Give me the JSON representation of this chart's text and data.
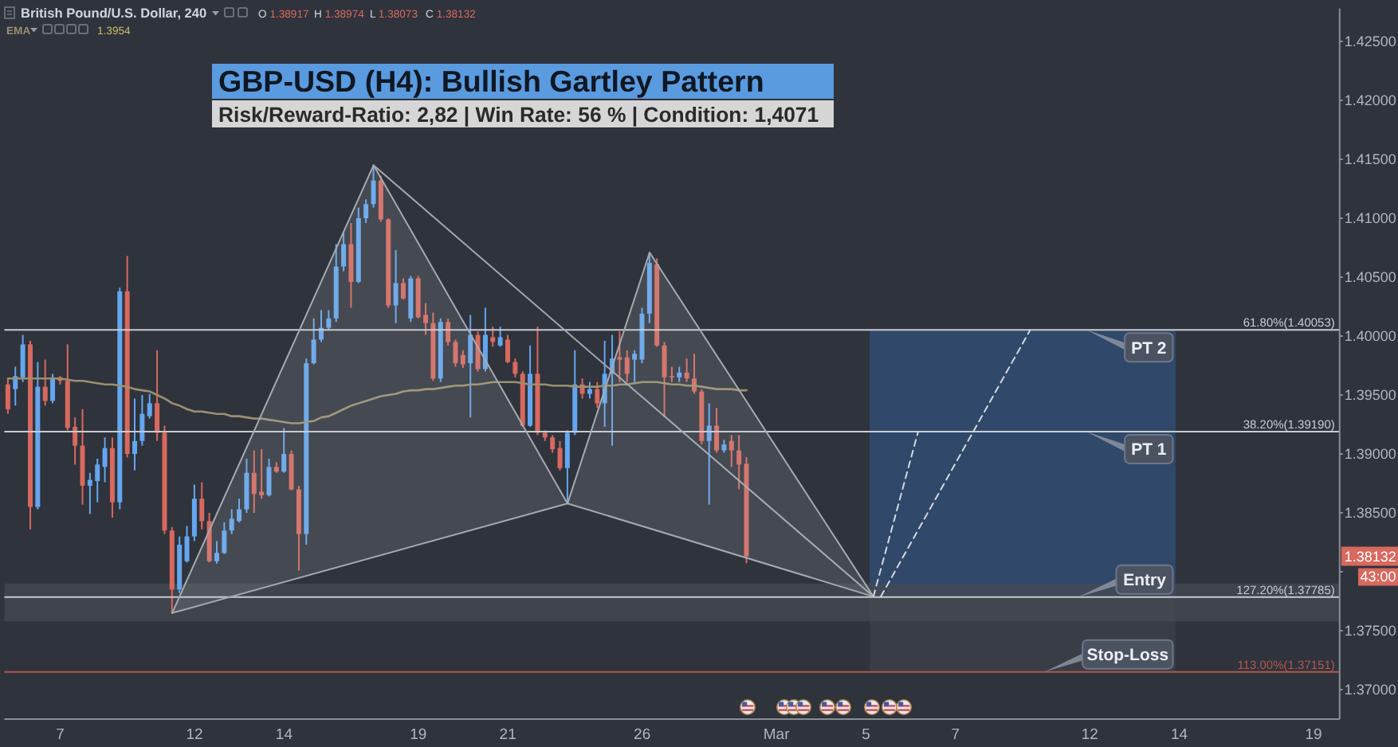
{
  "chart_data": {
    "type": "candlestick",
    "title": "GBP-USD (H4): Bullish Gartley Pattern",
    "subtitle": "Risk/Reward-Ratio: 2,82 | Win Rate: 56 % | Condition: 1,4071",
    "categories": [
      null,
      null,
      null,
      null,
      null,
      null,
      null,
      "7",
      null,
      null,
      null,
      null,
      null,
      null,
      null,
      null,
      null,
      null,
      null,
      null,
      null,
      null,
      null,
      null,
      null,
      "12",
      null,
      null,
      null,
      null,
      null,
      null,
      null,
      null,
      null,
      null,
      null,
      "14",
      null,
      null,
      null,
      null,
      null,
      null,
      null,
      null,
      null,
      null,
      null,
      null,
      null,
      null,
      null,
      null,
      null,
      "19",
      null,
      null,
      null,
      null,
      null,
      null,
      null,
      null,
      null,
      null,
      null,
      "21",
      null,
      null,
      null,
      null,
      null,
      null,
      null,
      null,
      null,
      null,
      null,
      null,
      null,
      null,
      null,
      null,
      null,
      "26",
      null,
      null,
      null,
      null,
      null,
      null,
      null,
      null,
      null,
      null,
      null,
      null,
      null,
      null,
      null,
      null,
      null,
      "Mar",
      null,
      null,
      null,
      null,
      null,
      null,
      null,
      null,
      null,
      null,
      null,
      "5",
      null,
      null,
      null,
      null,
      null,
      null,
      null,
      null,
      null,
      null,
      null,
      "7",
      null,
      null,
      null,
      null,
      null,
      null,
      null,
      null,
      null,
      null,
      null,
      null,
      null,
      null,
      null,
      null,
      null,
      "12",
      null,
      null,
      null,
      null,
      null,
      null,
      null,
      null,
      null,
      null,
      null,
      "14",
      null,
      null,
      null,
      null,
      null,
      null,
      null,
      null,
      null,
      null,
      null,
      null,
      null,
      null,
      null,
      null,
      null,
      "19",
      null,
      null,
      null
    ],
    "ohlc": [
      [
        1.3959,
        1.3964,
        1.3934,
        1.3938
      ],
      [
        1.3955,
        1.3974,
        1.3941,
        1.3966
      ],
      [
        1.3965,
        1.4001,
        1.3961,
        1.3993
      ],
      [
        1.3993,
        1.3996,
        1.3836,
        1.3855
      ],
      [
        1.3855,
        1.3978,
        1.3853,
        1.3957
      ],
      [
        1.3957,
        1.398,
        1.3941,
        1.3945
      ],
      [
        1.3945,
        1.3968,
        1.3943,
        1.3965
      ],
      [
        1.3965,
        1.3966,
        1.3959,
        1.3962
      ],
      [
        1.3962,
        1.3993,
        1.392,
        1.3922
      ],
      [
        1.3923,
        1.3931,
        1.3891,
        1.3907
      ],
      [
        1.3907,
        1.3938,
        1.3857,
        1.3873
      ],
      [
        1.3873,
        1.3884,
        1.3849,
        1.3878
      ],
      [
        1.3877,
        1.3896,
        1.3859,
        1.3891
      ],
      [
        1.3889,
        1.3914,
        1.3876,
        1.3905
      ],
      [
        1.3905,
        1.3914,
        1.3846,
        1.3859
      ],
      [
        1.3859,
        1.4041,
        1.3853,
        1.4038
      ],
      [
        1.4038,
        1.4068,
        1.3897,
        1.39
      ],
      [
        1.39,
        1.3947,
        1.3886,
        1.3911
      ],
      [
        1.3911,
        1.395,
        1.3907,
        1.3934
      ],
      [
        1.3932,
        1.3951,
        1.393,
        1.3943
      ],
      [
        1.3943,
        1.3988,
        1.3911,
        1.3918
      ],
      [
        1.3918,
        1.3924,
        1.3832,
        1.3835
      ],
      [
        1.3835,
        1.3838,
        1.3765,
        1.3785
      ],
      [
        1.3785,
        1.383,
        1.3782,
        1.3823
      ],
      [
        1.3809,
        1.3839,
        1.3808,
        1.383
      ],
      [
        1.383,
        1.3874,
        1.3826,
        1.3862
      ],
      [
        1.3862,
        1.3876,
        1.3836,
        1.3843
      ],
      [
        1.3843,
        1.385,
        1.3808,
        1.3809
      ],
      [
        1.3809,
        1.3826,
        1.3807,
        1.3816
      ],
      [
        1.3816,
        1.3842,
        1.3815,
        1.3835
      ],
      [
        1.3835,
        1.3853,
        1.3832,
        1.3845
      ],
      [
        1.3843,
        1.3862,
        1.3842,
        1.3853
      ],
      [
        1.3853,
        1.3896,
        1.385,
        1.3884
      ],
      [
        1.3884,
        1.3903,
        1.385,
        1.3866
      ],
      [
        1.3868,
        1.3904,
        1.3862,
        1.3865
      ],
      [
        1.3865,
        1.3896,
        1.3864,
        1.3889
      ],
      [
        1.3889,
        1.3893,
        1.3884,
        1.3885
      ],
      [
        1.3885,
        1.3922,
        1.3884,
        1.39
      ],
      [
        1.39,
        1.3903,
        1.3869,
        1.387
      ],
      [
        1.387,
        1.3873,
        1.3801,
        1.3832
      ],
      [
        1.3832,
        1.3981,
        1.3823,
        1.3977
      ],
      [
        1.3977,
        1.4015,
        1.3976,
        1.3997
      ],
      [
        1.3997,
        1.4022,
        1.3995,
        1.4007
      ],
      [
        1.4007,
        1.4022,
        1.4005,
        1.4015
      ],
      [
        1.4015,
        1.4078,
        1.4012,
        1.4059
      ],
      [
        1.4059,
        1.4089,
        1.4055,
        1.4078
      ],
      [
        1.4078,
        1.4096,
        1.4024,
        1.4046
      ],
      [
        1.4046,
        1.4109,
        1.4045,
        1.41
      ],
      [
        1.41,
        1.4116,
        1.4096,
        1.4112
      ],
      [
        1.4112,
        1.4145,
        1.4109,
        1.4132
      ],
      [
        1.4132,
        1.4136,
        1.4097,
        1.4099
      ],
      [
        1.4099,
        1.41,
        1.4024,
        1.4026
      ],
      [
        1.4026,
        1.4073,
        1.4011,
        1.4045
      ],
      [
        1.4045,
        1.4049,
        1.4031,
        1.4032
      ],
      [
        1.4015,
        1.4051,
        1.4012,
        1.4049
      ],
      [
        1.4049,
        1.4051,
        1.4015,
        1.4016
      ],
      [
        1.4018,
        1.4028,
        1.4001,
        1.4011
      ],
      [
        1.4011,
        1.402,
        1.3962,
        1.3964
      ],
      [
        1.3964,
        1.4015,
        1.3961,
        1.4012
      ],
      [
        1.4012,
        1.4015,
        1.3992,
        1.3995
      ],
      [
        1.3995,
        1.3997,
        1.3974,
        1.3977
      ],
      [
        1.3984,
        1.3988,
        1.3973,
        1.3976
      ],
      [
        1.3977,
        1.4018,
        1.3931,
        1.4001
      ],
      [
        1.4001,
        1.4004,
        1.397,
        1.3972
      ],
      [
        1.3972,
        1.4024,
        1.397,
        1.4001
      ],
      [
        1.3999,
        1.4008,
        1.3991,
        1.3995
      ],
      [
        1.3992,
        1.4008,
        1.3991,
        1.3999
      ],
      [
        1.3997,
        1.4001,
        1.3977,
        1.3978
      ],
      [
        1.3978,
        1.3981,
        1.3965,
        1.3968
      ],
      [
        1.3968,
        1.397,
        1.3923,
        1.3924
      ],
      [
        1.3924,
        1.3992,
        1.3923,
        1.3968
      ],
      [
        1.3968,
        1.4008,
        1.3916,
        1.3918
      ],
      [
        1.3918,
        1.392,
        1.3911,
        1.3914
      ],
      [
        1.3914,
        1.3916,
        1.3901,
        1.3904
      ],
      [
        1.3905,
        1.3911,
        1.3886,
        1.3888
      ],
      [
        1.3888,
        1.392,
        1.3858,
        1.3918
      ],
      [
        1.3918,
        1.3988,
        1.3916,
        1.3959
      ],
      [
        1.3959,
        1.3964,
        1.3947,
        1.3951
      ],
      [
        1.3951,
        1.3961,
        1.3947,
        1.3955
      ],
      [
        1.3955,
        1.3961,
        1.3939,
        1.3943
      ],
      [
        1.3943,
        1.3996,
        1.3923,
        1.3968
      ],
      [
        1.3968,
        1.4001,
        1.3907,
        1.3981
      ],
      [
        1.3982,
        1.4004,
        1.3961,
        1.398
      ],
      [
        1.3982,
        1.3988,
        1.3961,
        1.3968
      ],
      [
        1.398,
        1.3988,
        1.3961,
        1.3985
      ],
      [
        1.398,
        1.4024,
        1.3977,
        1.4019
      ],
      [
        1.4019,
        1.4071,
        1.4011,
        1.4062
      ],
      [
        1.4061,
        1.4066,
        1.3991,
        1.3992
      ],
      [
        1.3992,
        1.3995,
        1.3931,
        1.3965
      ],
      [
        1.3966,
        1.3974,
        1.3961,
        1.3965
      ],
      [
        1.3965,
        1.3974,
        1.3961,
        1.3969
      ],
      [
        1.3969,
        1.3981,
        1.3961,
        1.3964
      ],
      [
        1.3964,
        1.3985,
        1.3951,
        1.3953
      ],
      [
        1.3953,
        1.3955,
        1.3908,
        1.3911
      ],
      [
        1.3911,
        1.3943,
        1.3857,
        1.3924
      ],
      [
        1.3924,
        1.3939,
        1.3901,
        1.3903
      ],
      [
        1.3903,
        1.3912,
        1.3901,
        1.3908
      ],
      [
        1.3911,
        1.3916,
        1.3889,
        1.3903
      ],
      [
        1.3903,
        1.3916,
        1.387,
        1.3891
      ],
      [
        1.38917,
        1.38974,
        1.38073,
        1.38132
      ],
      null,
      null,
      null,
      null,
      null,
      null,
      null,
      null,
      null,
      null,
      null,
      null,
      null,
      null,
      null,
      null,
      null,
      null,
      null,
      null,
      null,
      null,
      null,
      null,
      null,
      null,
      null,
      null,
      null,
      null,
      null,
      null,
      null,
      null,
      null,
      null,
      null,
      null,
      null,
      null,
      null,
      null,
      null,
      null,
      null,
      null,
      null,
      null,
      null,
      null,
      null,
      null,
      null,
      null,
      null,
      null,
      null,
      null,
      null,
      null,
      null,
      null,
      null,
      null,
      null,
      null,
      null,
      null,
      null,
      null,
      null,
      null,
      null,
      null,
      null,
      null,
      null,
      null,
      null
    ],
    "colors": [
      "#d8695e",
      "#64a6ef",
      "#64a6ef",
      "#d8695e",
      "#64a6ef",
      "#d8695e",
      "#64a6ef",
      "#d8695e",
      "#d8695e",
      "#d8695e",
      "#d8695e",
      "#64a6ef",
      "#64a6ef",
      "#64a6ef",
      "#d8695e",
      "#64a6ef",
      "#d8695e",
      "#64a6ef",
      "#64a6ef",
      "#64a6ef",
      "#d8695e",
      "#d8695e",
      "#d8695e",
      "#64a6ef",
      "#64a6ef",
      "#64a6ef",
      "#d8695e",
      "#d8695e",
      "#64a6ef",
      "#64a6ef",
      "#64a6ef",
      "#64a6ef",
      "#64a6ef",
      "#d8695e",
      "#d8695e",
      "#64a6ef",
      "#d8695e",
      "#64a6ef",
      "#d8695e",
      "#d8695e",
      "#64a6ef",
      "#64a6ef",
      "#64a6ef",
      "#64a6ef",
      "#64a6ef",
      "#64a6ef",
      "#d8695e",
      "#64a6ef",
      "#64a6ef",
      "#64a6ef",
      "#d8695e",
      "#d8695e",
      "#64a6ef",
      "#d8695e",
      "#64a6ef",
      "#d8695e",
      "#d8695e",
      "#d8695e",
      "#64a6ef",
      "#d8695e",
      "#d8695e",
      "#d8695e",
      "#64a6ef",
      "#d8695e",
      "#64a6ef",
      "#d8695e",
      "#64a6ef",
      "#d8695e",
      "#d8695e",
      "#d8695e",
      "#64a6ef",
      "#d8695e",
      "#d8695e",
      "#d8695e",
      "#d8695e",
      "#64a6ef",
      "#64a6ef",
      "#d8695e",
      "#64a6ef",
      "#d8695e",
      "#64a6ef",
      "#64a6ef",
      "#d8695e",
      "#d8695e",
      "#64a6ef",
      "#64a6ef",
      "#64a6ef",
      "#d8695e",
      "#d8695e",
      "#d8695e",
      "#64a6ef",
      "#d8695e",
      "#d8695e",
      "#d8695e",
      "#64a6ef",
      "#d8695e",
      "#64a6ef",
      "#d8695e",
      "#d8695e",
      "#d8695e",
      null,
      null,
      null,
      null,
      null,
      null,
      null,
      null,
      null,
      null,
      null,
      null,
      null,
      null,
      null,
      null,
      null,
      null,
      null,
      null,
      null,
      null,
      null,
      null,
      null,
      null,
      null,
      null,
      null,
      null,
      null,
      null,
      null,
      null,
      null,
      null,
      null,
      null,
      null,
      null,
      null,
      null,
      null,
      null,
      null,
      null,
      null,
      null,
      null,
      null,
      null,
      null,
      null,
      null,
      null,
      null,
      null,
      null,
      null,
      null,
      null,
      null,
      null,
      null,
      null,
      null,
      null,
      null,
      null,
      null,
      null,
      null,
      null,
      null,
      null,
      null,
      null,
      null,
      null
    ],
    "series": [
      {
        "name": "EMA",
        "type": "line",
        "color": "#9a9070",
        "values": [
          1.3964,
          1.3964,
          1.3964,
          1.3964,
          1.3964,
          1.3964,
          1.3964,
          1.3964,
          1.3963,
          1.3962,
          1.3962,
          1.3961,
          1.396,
          1.3959,
          1.3959,
          1.3958,
          1.3957,
          1.3955,
          1.3954,
          1.3953,
          1.395,
          1.3947,
          1.3943,
          1.3941,
          1.3938,
          1.3936,
          1.3936,
          1.3935,
          1.3934,
          1.3934,
          1.3932,
          1.3932,
          1.3931,
          1.393,
          1.393,
          1.3929,
          1.3928,
          1.3927,
          1.3926,
          1.3926,
          1.3927,
          1.3928,
          1.3931,
          1.3932,
          1.3935,
          1.3938,
          1.3941,
          1.3943,
          1.3945,
          1.3947,
          1.3949,
          1.395,
          1.3951,
          1.3953,
          1.3954,
          1.3954,
          1.3955,
          1.3955,
          1.3956,
          1.3957,
          1.3958,
          1.3958,
          1.3959,
          1.3959,
          1.396,
          1.3961,
          1.3961,
          1.3961,
          1.3961,
          1.396,
          1.3959,
          1.3959,
          1.3959,
          1.3958,
          1.3958,
          1.3958,
          1.3957,
          1.3957,
          1.3957,
          1.3957,
          1.3958,
          1.3958,
          1.3959,
          1.3959,
          1.396,
          1.3961,
          1.3961,
          1.3961,
          1.396,
          1.3959,
          1.3959,
          1.3958,
          1.3958,
          1.3957,
          1.3956,
          1.3955,
          1.3955,
          1.3955,
          1.3954,
          1.3954,
          null,
          null,
          null,
          null,
          null,
          null,
          null,
          null,
          null,
          null,
          null,
          null,
          null,
          null,
          null,
          null,
          null,
          null,
          null,
          null,
          null,
          null,
          null,
          null,
          null,
          null,
          null,
          null,
          null,
          null,
          null,
          null,
          null,
          null,
          null,
          null,
          null,
          null,
          null,
          null,
          null,
          null,
          null,
          null,
          null,
          null,
          null,
          null,
          null,
          null,
          null,
          null,
          null,
          null,
          null,
          null,
          null,
          null,
          null,
          null,
          null,
          null,
          null,
          null,
          null,
          null,
          null,
          null,
          null,
          null,
          null,
          null,
          null,
          null,
          null,
          null,
          null,
          null,
          null
        ]
      },
      {
        "type": "line",
        "color": "#a3a7af",
        "values": [
          null,
          null,
          null,
          null,
          null,
          null,
          null,
          null,
          null,
          null,
          null,
          null,
          null,
          null,
          null,
          null,
          null,
          null,
          null,
          null,
          null,
          null,
          1.3765,
          null,
          null,
          null,
          null,
          null,
          null,
          null,
          null,
          null,
          null,
          null,
          null,
          null,
          null,
          null,
          null,
          null,
          null,
          null,
          null,
          null,
          null,
          null,
          null,
          null,
          null,
          1.4145,
          null,
          null,
          null,
          null,
          null,
          null,
          null,
          null,
          null,
          null,
          null,
          null,
          null,
          null,
          null,
          null,
          null,
          null,
          null,
          null,
          null,
          null,
          null,
          null,
          null,
          1.3858,
          null,
          null,
          null,
          null,
          null,
          null,
          null,
          null,
          null,
          null,
          1.4071,
          null,
          null,
          null,
          null,
          null,
          null,
          null,
          null,
          null,
          null,
          null,
          null,
          null,
          null,
          null,
          null,
          null,
          null,
          null,
          null,
          null,
          null,
          null,
          null,
          null,
          null,
          null,
          null,
          null,
          1.3779,
          null,
          null,
          null,
          null,
          null,
          null,
          null,
          null,
          null,
          null,
          null,
          null,
          null,
          null,
          null,
          null,
          null,
          null,
          null,
          null,
          null,
          null,
          null,
          null,
          null,
          null,
          null,
          null,
          null,
          null,
          null,
          null,
          null,
          null,
          null,
          null,
          null,
          null,
          null,
          null,
          null,
          null,
          null,
          null,
          null,
          null,
          null,
          null,
          null,
          null,
          null,
          null,
          null,
          null,
          null,
          null,
          null,
          null,
          null,
          null,
          null,
          null
        ]
      },
      {
        "type": "line",
        "color": "#a3a7af",
        "values": [
          null,
          null,
          null,
          null,
          null,
          null,
          null,
          null,
          null,
          null,
          null,
          null,
          null,
          null,
          null,
          null,
          null,
          null,
          null,
          null,
          null,
          null,
          1.3765,
          null,
          null,
          null,
          null,
          null,
          null,
          null,
          null,
          null,
          null,
          null,
          null,
          null,
          null,
          null,
          null,
          null,
          null,
          null,
          null,
          null,
          null,
          null,
          null,
          null,
          null,
          null,
          null,
          null,
          null,
          null,
          null,
          null,
          null,
          null,
          null,
          null,
          null,
          null,
          null,
          null,
          null,
          null,
          null,
          null,
          null,
          null,
          null,
          null,
          null,
          null,
          null,
          1.3858,
          null,
          null,
          null,
          null,
          null,
          null,
          null,
          null,
          null,
          null,
          null,
          null,
          null,
          null,
          null,
          null,
          null,
          null,
          null,
          null,
          null,
          null,
          null,
          null,
          null,
          null,
          null,
          null,
          null,
          null,
          null,
          null,
          null,
          null,
          null,
          null,
          null,
          null,
          null,
          null,
          1.3779,
          null,
          null,
          null,
          null,
          null,
          null,
          null,
          null,
          null,
          null,
          null,
          null,
          null,
          null,
          null,
          null,
          null,
          null,
          null,
          null,
          null,
          null,
          null,
          null,
          null,
          null,
          null,
          null,
          null,
          null,
          null,
          null,
          null,
          null,
          null,
          null,
          null,
          null,
          null,
          null,
          null,
          null,
          null,
          null,
          null,
          null,
          null,
          null,
          null,
          null,
          null,
          null,
          null,
          null,
          null,
          null,
          null,
          null,
          null,
          null,
          null,
          null
        ]
      },
      {
        "type": "line",
        "color": "#a3a7af",
        "values": [
          null,
          null,
          null,
          null,
          null,
          null,
          null,
          null,
          null,
          null,
          null,
          null,
          null,
          null,
          null,
          null,
          null,
          null,
          null,
          null,
          null,
          null,
          null,
          null,
          null,
          null,
          null,
          null,
          null,
          null,
          null,
          null,
          null,
          null,
          null,
          null,
          null,
          null,
          null,
          null,
          null,
          null,
          null,
          null,
          null,
          null,
          null,
          null,
          null,
          1.4145,
          null,
          null,
          null,
          null,
          null,
          null,
          null,
          null,
          null,
          null,
          null,
          null,
          null,
          null,
          null,
          null,
          null,
          null,
          null,
          null,
          null,
          null,
          null,
          null,
          null,
          null,
          null,
          null,
          null,
          null,
          null,
          null,
          null,
          null,
          null,
          null,
          null,
          null,
          null,
          null,
          null,
          null,
          null,
          null,
          null,
          null,
          null,
          null,
          null,
          null,
          null,
          null,
          null,
          null,
          null,
          null,
          null,
          null,
          null,
          null,
          null,
          null,
          null,
          null,
          null,
          null,
          1.3779,
          null,
          null,
          null,
          null,
          null,
          null,
          null,
          null,
          null,
          null,
          null,
          null,
          null,
          null,
          null,
          null,
          null,
          null,
          null,
          null,
          null,
          null,
          null,
          null,
          null,
          null,
          null,
          null,
          null,
          null,
          null,
          null,
          null,
          null,
          null,
          null,
          null,
          null,
          null,
          null,
          null,
          null,
          null,
          null,
          null,
          null,
          null,
          null,
          null,
          null,
          null,
          null,
          null,
          null,
          null,
          null,
          null,
          null,
          null,
          null,
          null,
          null
        ]
      },
      {
        "type": "line",
        "color": "#d5d8de",
        "line_style": "dashed",
        "values": [
          null,
          null,
          null,
          null,
          null,
          null,
          null,
          null,
          null,
          null,
          null,
          null,
          null,
          null,
          null,
          null,
          null,
          null,
          null,
          null,
          null,
          null,
          null,
          null,
          null,
          null,
          null,
          null,
          null,
          null,
          null,
          null,
          null,
          null,
          null,
          null,
          null,
          null,
          null,
          null,
          null,
          null,
          null,
          null,
          null,
          null,
          null,
          null,
          null,
          null,
          null,
          null,
          null,
          null,
          null,
          null,
          null,
          null,
          null,
          null,
          null,
          null,
          null,
          null,
          null,
          null,
          null,
          null,
          null,
          null,
          null,
          null,
          null,
          null,
          null,
          null,
          null,
          null,
          null,
          null,
          null,
          null,
          null,
          null,
          null,
          null,
          null,
          null,
          null,
          null,
          null,
          null,
          null,
          null,
          null,
          null,
          null,
          null,
          null,
          null,
          null,
          null,
          null,
          null,
          null,
          null,
          null,
          null,
          null,
          null,
          null,
          null,
          null,
          null,
          null,
          null,
          1.3779,
          null,
          null,
          null,
          null,
          null,
          1.3919,
          null,
          null,
          null,
          null,
          null,
          null,
          null,
          null,
          null,
          null,
          null,
          null,
          null,
          null,
          null,
          null,
          null,
          null,
          null,
          null,
          null,
          null,
          null,
          null,
          null,
          null,
          null,
          null,
          null,
          null,
          null,
          null,
          null,
          null,
          null,
          null,
          null,
          null,
          null,
          null,
          null,
          null,
          null,
          null,
          null,
          null,
          null,
          null,
          null,
          null,
          null,
          null,
          null,
          null,
          null,
          null
        ]
      },
      {
        "type": "line",
        "color": "#d5d8de",
        "line_style": "dashed",
        "values": [
          null,
          null,
          null,
          null,
          null,
          null,
          null,
          null,
          null,
          null,
          null,
          null,
          null,
          null,
          null,
          null,
          null,
          null,
          null,
          null,
          null,
          null,
          null,
          null,
          null,
          null,
          null,
          null,
          null,
          null,
          null,
          null,
          null,
          null,
          null,
          null,
          null,
          null,
          null,
          null,
          null,
          null,
          null,
          null,
          null,
          null,
          null,
          null,
          null,
          null,
          null,
          null,
          null,
          null,
          null,
          null,
          null,
          null,
          null,
          null,
          null,
          null,
          null,
          null,
          null,
          null,
          null,
          null,
          null,
          null,
          null,
          null,
          null,
          null,
          null,
          null,
          null,
          null,
          null,
          null,
          null,
          null,
          null,
          null,
          null,
          null,
          null,
          null,
          null,
          null,
          null,
          null,
          null,
          null,
          null,
          null,
          null,
          null,
          null,
          null,
          null,
          null,
          null,
          null,
          null,
          null,
          null,
          null,
          null,
          null,
          null,
          null,
          null,
          null,
          null,
          null,
          null,
          1.3779,
          null,
          null,
          null,
          null,
          null,
          null,
          null,
          null,
          null,
          null,
          null,
          null,
          null,
          null,
          null,
          null,
          null,
          null,
          null,
          1.4005,
          null,
          null,
          null,
          null,
          null,
          null,
          null,
          null,
          null,
          null,
          null,
          null,
          null,
          null,
          null,
          null,
          null,
          null,
          null,
          null,
          null,
          null,
          null,
          null,
          null,
          null,
          null,
          null,
          null,
          null,
          null,
          null,
          null,
          null,
          null,
          null,
          null,
          null,
          null,
          null,
          null
        ]
      }
    ],
    "ylim": [
      1.3675,
      1.4278
    ],
    "yticks": [
      {
        "value": 1.37,
        "label": "1.37000"
      },
      {
        "value": 1.375,
        "label": "1.37500"
      },
      {
        "value": 1.38,
        "label": null
      },
      {
        "value": 1.385,
        "label": "1.38500"
      },
      {
        "value": 1.39,
        "label": "1.39000"
      },
      {
        "value": 1.395,
        "label": "1.39500"
      },
      {
        "value": 1.4,
        "label": "1.40000"
      },
      {
        "value": 1.405,
        "label": "1.40500"
      },
      {
        "value": 1.41,
        "label": "1.41000"
      },
      {
        "value": 1.415,
        "label": "1.41500"
      },
      {
        "value": 1.42,
        "label": "1.42000"
      },
      {
        "value": 1.425,
        "label": "1.42500"
      }
    ],
    "ref_lines": [
      {
        "axis": "y",
        "value": 1.40053,
        "label": "61.80%(1.40053)",
        "color": "#c8cbd1"
      },
      {
        "axis": "y",
        "value": 1.3919,
        "label": "38.20%(1.39190)",
        "color": "#c8cbd1"
      },
      {
        "axis": "y",
        "value": 1.37785,
        "label": "127.20%(1.37785)",
        "color": "#c8cbd1"
      },
      {
        "axis": "y",
        "value": 1.37151,
        "label": "113.00%(1.37151)",
        "color": "#b4574d"
      }
    ],
    "bands": [
      {
        "axis": "y",
        "from": 1.3758,
        "to": 1.379,
        "color": "#464a53"
      },
      {
        "axis": "y",
        "from": 1.37785,
        "to": 1.40053,
        "color": "#30496a"
      },
      {
        "axis": "y",
        "from": 1.37151,
        "to": 1.37785,
        "color": "#393d46"
      }
    ],
    "annotations": [
      "British Pound/U.S. Dollar, 240",
      "O 1.38917",
      "H 1.38974",
      "L 1.38073",
      "C 1.38132",
      "1.3954",
      "1.38132",
      "43:00",
      {
        "text": "PT 2",
        "y": 1.40053
      },
      {
        "text": "PT 1",
        "y": 1.3919
      },
      {
        "text": "Entry",
        "y": 1.37785
      },
      {
        "text": "Stop-Loss",
        "y": 1.37151
      }
    ],
    "legend": "top left"
  }
}
